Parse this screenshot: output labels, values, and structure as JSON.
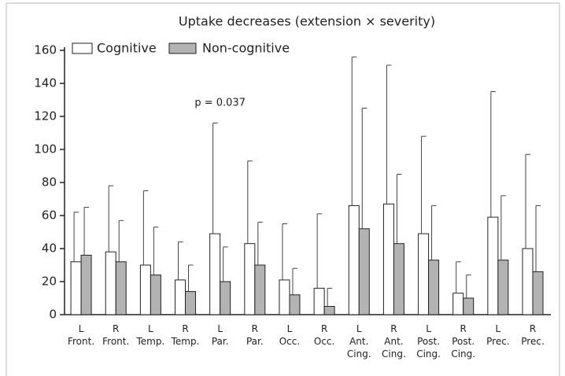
{
  "chart_data": {
    "type": "bar",
    "title": "Uptake decreases (extension × severity)",
    "categories": [
      "L Front.",
      "R Front.",
      "L Temp.",
      "R Temp.",
      "L Par.",
      "R Par.",
      "L Occ.",
      "R Occ.",
      "L Ant. Cing.",
      "R Ant. Cing.",
      "L Post. Cing.",
      "R Post. Cing.",
      "L Prec.",
      "R Prec."
    ],
    "series": [
      {
        "name": "Cognitive",
        "color": "#ffffff",
        "values": [
          32,
          38,
          30,
          21,
          49,
          43,
          21,
          16,
          66,
          67,
          49,
          13,
          59,
          40
        ],
        "errors": [
          30,
          40,
          45,
          23,
          67,
          50,
          34,
          45,
          90,
          84,
          59,
          19,
          76,
          57
        ]
      },
      {
        "name": "Non-cognitive",
        "color": "#b3b3b3",
        "values": [
          36,
          32,
          24,
          14,
          20,
          30,
          12,
          5,
          52,
          43,
          33,
          10,
          33,
          26
        ],
        "errors": [
          29,
          25,
          29,
          16,
          21,
          26,
          16,
          11,
          73,
          42,
          33,
          14,
          39,
          40
        ]
      }
    ],
    "annotations": [
      {
        "text": "p = 0.037",
        "category": 4
      }
    ],
    "ylim": [
      0,
      160
    ],
    "yticks": [
      0,
      20,
      40,
      60,
      80,
      100,
      120,
      140,
      160
    ],
    "grid": false
  }
}
